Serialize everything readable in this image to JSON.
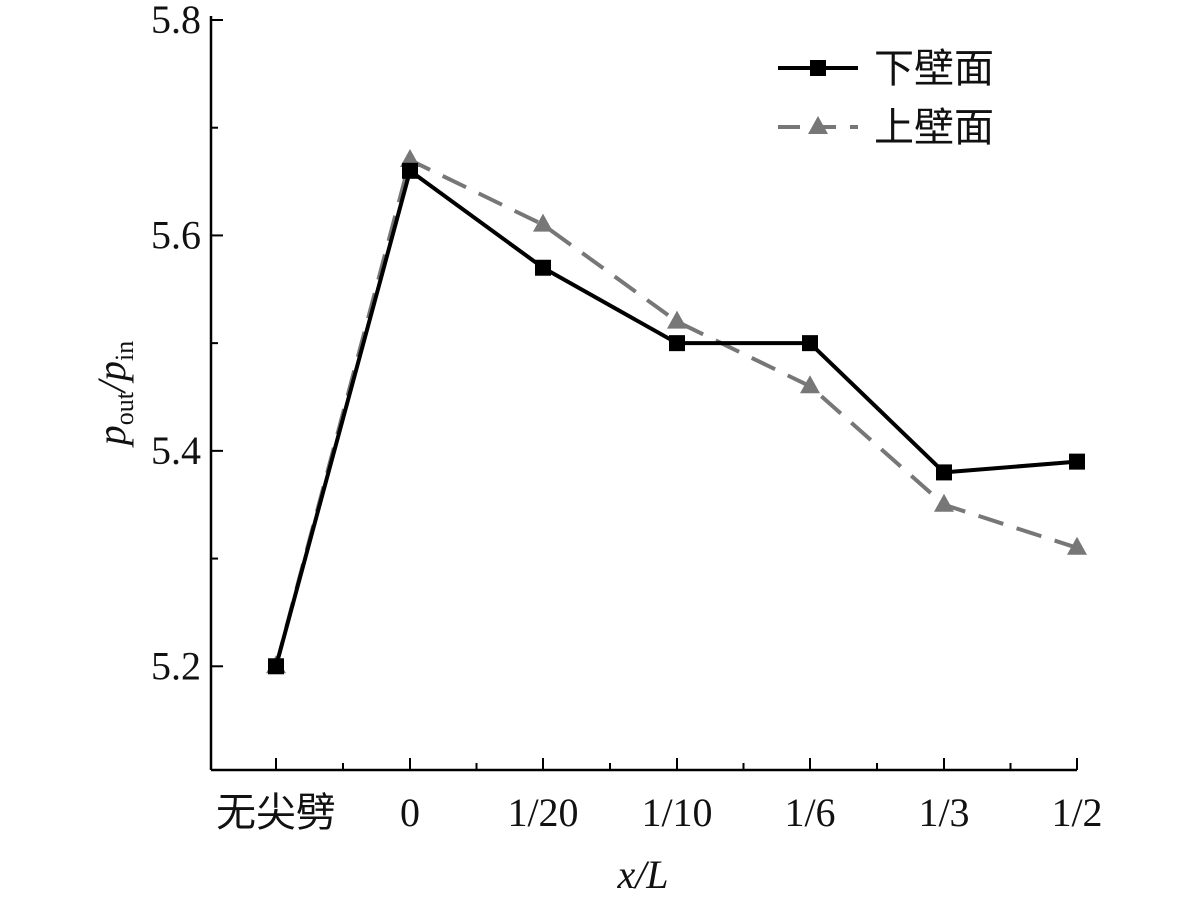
{
  "chart_data": {
    "type": "line",
    "title": "",
    "xlabel": "x/L",
    "ylabel": {
      "p1": "p",
      "s1": "out",
      "slash": "/",
      "p2": "p",
      "s2": "in"
    },
    "categories": [
      "无尖劈",
      "0",
      "1/20",
      "1/10",
      "1/6",
      "1/3",
      "1/2"
    ],
    "ylim": [
      5.1,
      5.8
    ],
    "yticks": [
      "5.2",
      "5.4",
      "5.6",
      "5.8"
    ],
    "ytick_values": [
      5.2,
      5.4,
      5.6,
      5.8
    ],
    "grid": false,
    "legend_position": "top-right",
    "series": [
      {
        "name": "下壁面",
        "values": [
          5.2,
          5.66,
          5.57,
          5.5,
          5.5,
          5.38,
          5.39
        ],
        "color": "#000000",
        "line_style": "solid",
        "marker": "square"
      },
      {
        "name": "上壁面",
        "values": [
          5.2,
          5.67,
          5.61,
          5.52,
          5.46,
          5.35,
          5.31
        ],
        "color": "#777777",
        "line_style": "dashed",
        "marker": "triangle"
      }
    ]
  }
}
